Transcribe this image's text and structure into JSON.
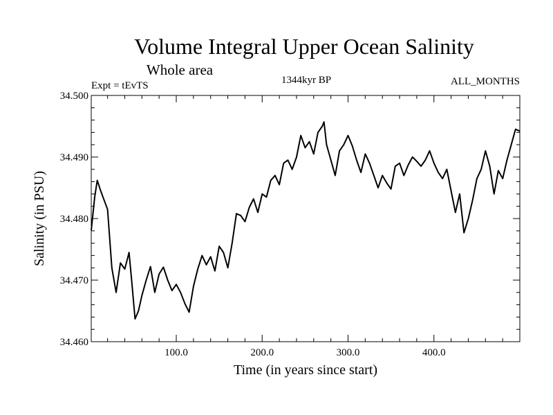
{
  "chart_data": {
    "type": "line",
    "title": "Volume Integral Upper Ocean Salinity",
    "subtitle": "Whole area",
    "experiment_label": "Expt = tEvTS",
    "period_label": "1344kyr BP",
    "months_label": "ALL_MONTHS",
    "xlabel": "Time (in years since start)",
    "ylabel": "Salinity (in PSU)",
    "xlim": [
      1,
      500
    ],
    "ylim": [
      34.46,
      34.5
    ],
    "x_ticks": [
      100,
      200,
      300,
      400
    ],
    "x_tick_labels": [
      "100.0",
      "200.0",
      "300.0",
      "400.0"
    ],
    "y_ticks": [
      34.46,
      34.47,
      34.48,
      34.49,
      34.5
    ],
    "y_tick_labels": [
      "34.460",
      "34.470",
      "34.480",
      "34.490",
      "34.500"
    ],
    "series": [
      {
        "name": "Salinity",
        "color": "#000000",
        "x": [
          1,
          5,
          8,
          12,
          16,
          20,
          25,
          30,
          35,
          40,
          45,
          48,
          52,
          56,
          60,
          65,
          70,
          75,
          80,
          85,
          90,
          95,
          100,
          105,
          110,
          115,
          120,
          125,
          130,
          135,
          140,
          145,
          150,
          155,
          160,
          165,
          170,
          175,
          180,
          185,
          190,
          195,
          200,
          205,
          210,
          215,
          220,
          225,
          230,
          235,
          240,
          245,
          250,
          255,
          260,
          265,
          270,
          272,
          275,
          280,
          285,
          290,
          295,
          300,
          305,
          310,
          315,
          320,
          325,
          330,
          335,
          340,
          345,
          350,
          355,
          360,
          365,
          370,
          375,
          380,
          385,
          390,
          395,
          400,
          405,
          410,
          415,
          420,
          425,
          430,
          435,
          440,
          445,
          450,
          455,
          460,
          465,
          470,
          475,
          480,
          485,
          490,
          495,
          500
        ],
        "values": [
          34.4781,
          34.4835,
          34.4862,
          34.4845,
          34.483,
          34.4815,
          34.472,
          34.468,
          34.4728,
          34.4718,
          34.4745,
          34.47,
          34.4637,
          34.465,
          34.4675,
          34.47,
          34.4722,
          34.468,
          34.471,
          34.4721,
          34.47,
          34.4683,
          34.4693,
          34.468,
          34.4662,
          34.4648,
          34.469,
          34.4718,
          34.474,
          34.4725,
          34.4738,
          34.4715,
          34.4755,
          34.4745,
          34.472,
          34.476,
          34.4808,
          34.4805,
          34.4795,
          34.4818,
          34.4832,
          34.481,
          34.484,
          34.4835,
          34.4862,
          34.487,
          34.4855,
          34.489,
          34.4895,
          34.488,
          34.49,
          34.4935,
          34.4915,
          34.4925,
          34.4905,
          34.494,
          34.495,
          34.4957,
          34.492,
          34.4895,
          34.487,
          34.491,
          34.492,
          34.4935,
          34.4918,
          34.4895,
          34.4875,
          34.4905,
          34.489,
          34.487,
          34.485,
          34.487,
          34.4858,
          34.4848,
          34.4885,
          34.489,
          34.487,
          34.4887,
          34.49,
          34.4893,
          34.4885,
          34.4895,
          34.491,
          34.489,
          34.4875,
          34.4865,
          34.488,
          34.4845,
          34.481,
          34.484,
          34.4777,
          34.48,
          34.483,
          34.4865,
          34.488,
          34.491,
          34.4885,
          34.484,
          34.4878,
          34.4865,
          34.4895,
          34.492,
          34.4945,
          34.4942
        ]
      }
    ]
  }
}
